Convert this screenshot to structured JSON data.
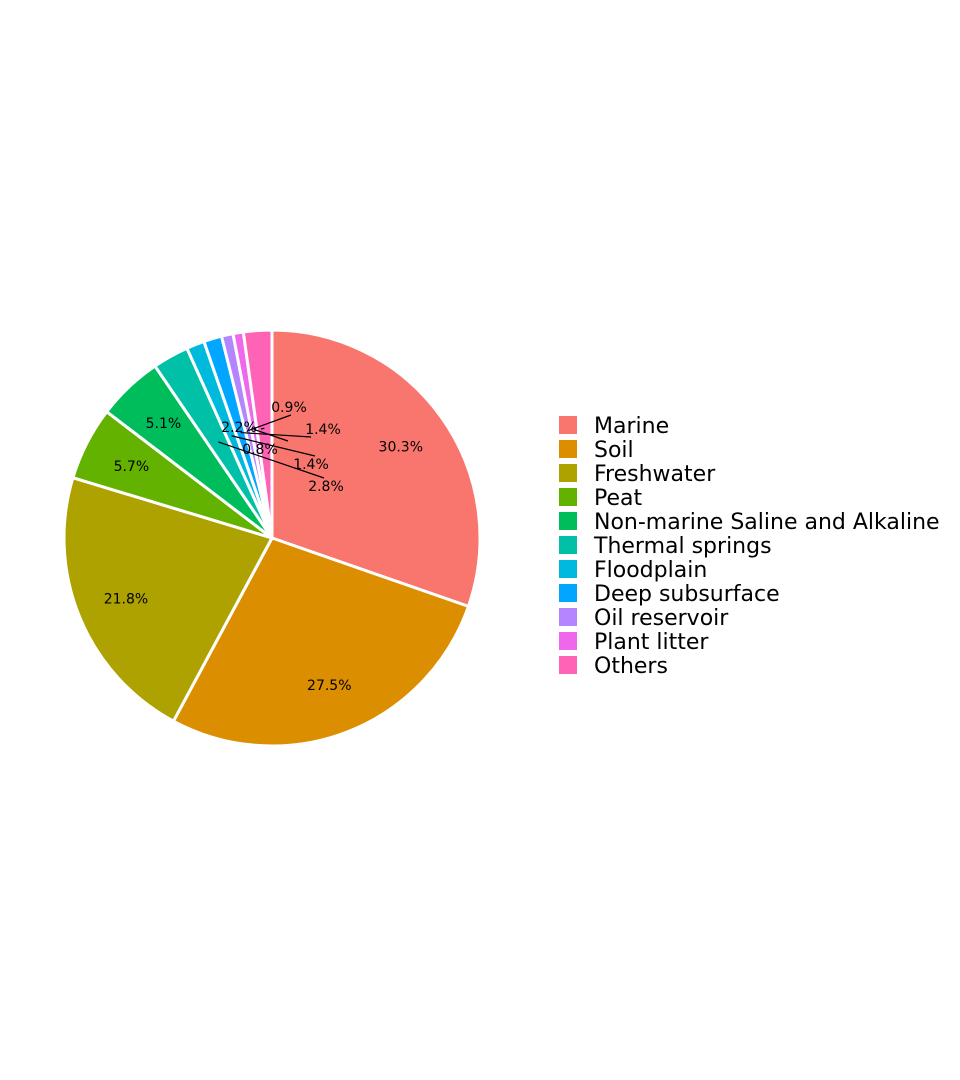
{
  "chart_data": {
    "type": "pie",
    "title": "",
    "start_angle_deg": 90,
    "direction": "clockwise",
    "legend_position": "right",
    "slice_border_color": "#ffffff",
    "slices": [
      {
        "label": "Marine",
        "value": 30.3,
        "display": "30.3%",
        "color": "#F8766D"
      },
      {
        "label": "Soil",
        "value": 27.5,
        "display": "27.5%",
        "color": "#DB8E00"
      },
      {
        "label": "Freshwater",
        "value": 21.8,
        "display": "21.8%",
        "color": "#AEA200"
      },
      {
        "label": "Peat",
        "value": 5.7,
        "display": "5.7%",
        "color": "#64B200"
      },
      {
        "label": "Non-marine Saline and Alkaline",
        "value": 5.1,
        "display": "5.1%",
        "color": "#00BD5C"
      },
      {
        "label": "Thermal springs",
        "value": 2.8,
        "display": "2.8%",
        "color": "#00C1A7"
      },
      {
        "label": "Floodplain",
        "value": 1.4,
        "display": "1.4%",
        "color": "#00BADE"
      },
      {
        "label": "Deep subsurface",
        "value": 1.4,
        "display": "1.4%",
        "color": "#00A6FF"
      },
      {
        "label": "Oil reservoir",
        "value": 0.9,
        "display": "0.9%",
        "color": "#B385FF"
      },
      {
        "label": "Plant litter",
        "value": 0.8,
        "display": "0.8%",
        "color": "#EF67EB"
      },
      {
        "label": "Others",
        "value": 2.2,
        "display": "2.2%",
        "color": "#FF63B6"
      }
    ]
  }
}
